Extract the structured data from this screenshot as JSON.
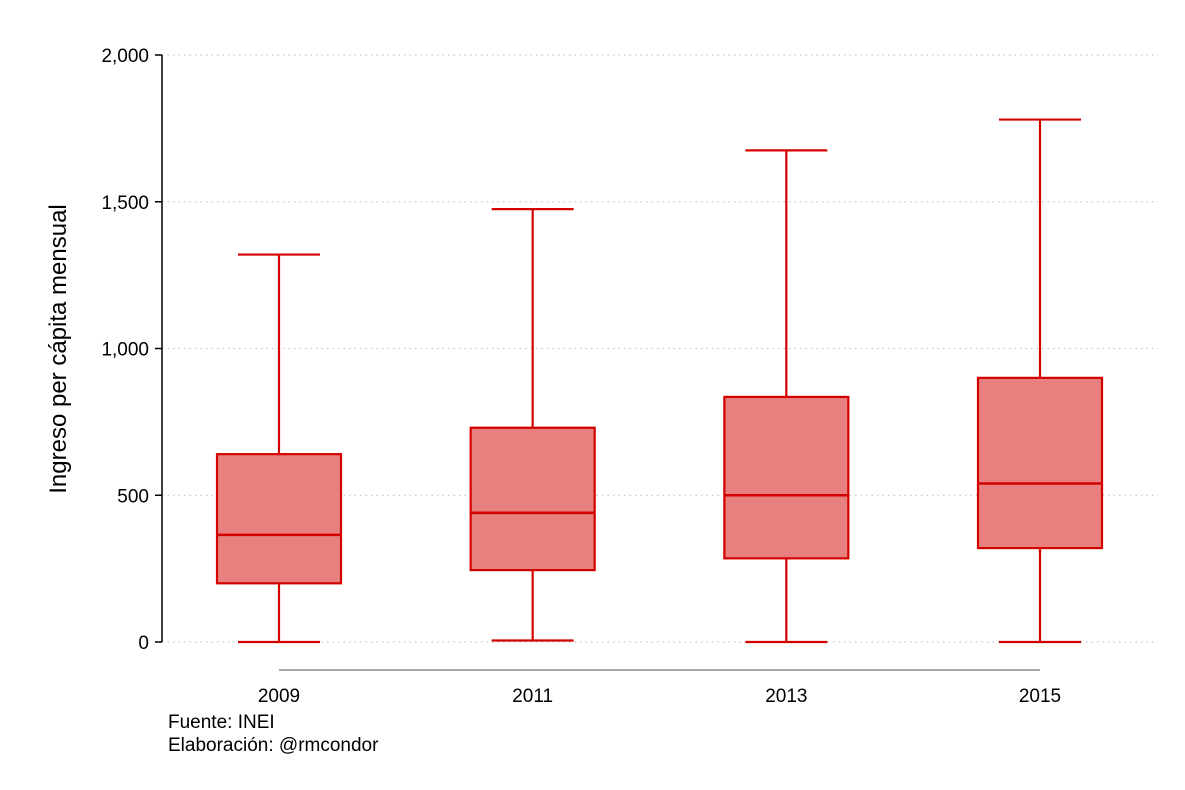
{
  "chart_data": {
    "type": "boxplot",
    "ylabel": "Ingreso per cápita mensual",
    "xlabel": "",
    "ylim": [
      0,
      2000
    ],
    "yticks": [
      0,
      500,
      1000,
      1500,
      2000
    ],
    "ytick_labels": [
      "0",
      "500",
      "1,000",
      "1,500",
      "2,000"
    ],
    "grid": "horizontal dotted",
    "categories": [
      "2009",
      "2011",
      "2013",
      "2015"
    ],
    "boxes": [
      {
        "category": "2009",
        "whisker_low": 0,
        "q1": 200,
        "median": 365,
        "q3": 640,
        "whisker_high": 1320
      },
      {
        "category": "2011",
        "whisker_low": 5,
        "q1": 245,
        "median": 440,
        "q3": 730,
        "whisker_high": 1475
      },
      {
        "category": "2013",
        "whisker_low": 0,
        "q1": 285,
        "median": 500,
        "q3": 835,
        "whisker_high": 1675
      },
      {
        "category": "2015",
        "whisker_low": 0,
        "q1": 320,
        "median": 540,
        "q3": 900,
        "whisker_high": 1780
      }
    ],
    "colors": {
      "stroke": "#d40000",
      "fill": "#e98080",
      "axis": "#000000",
      "grid": "#c8c8c8",
      "baseline": "#a8a8a8"
    }
  },
  "notes": {
    "source": "Fuente: INEI",
    "author": "Elaboración: @rmcondor"
  }
}
